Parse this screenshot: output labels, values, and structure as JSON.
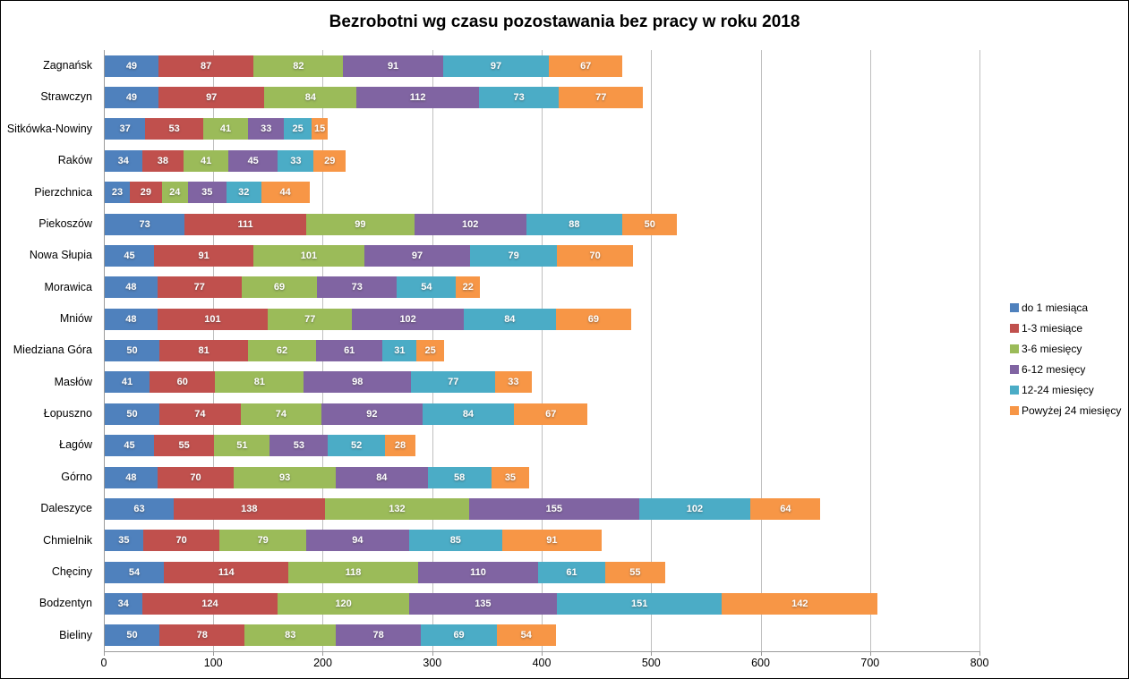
{
  "title": "Bezrobotni wg czasu pozostawania bez pracy w roku 2018",
  "chart_data": {
    "type": "bar",
    "orientation": "horizontal",
    "stacked": true,
    "title": "Bezrobotni wg czasu pozostawania bez pracy w roku 2018",
    "xlabel": "",
    "ylabel": "",
    "xlim": [
      0,
      800
    ],
    "xticks": [
      0,
      100,
      200,
      300,
      400,
      500,
      600,
      700,
      800
    ],
    "grid": true,
    "legend_position": "right",
    "value_labels": "inside-white-bold",
    "categories": [
      "Zagnańsk",
      "Strawczyn",
      "Sitkówka-Nowiny",
      "Raków",
      "Pierzchnica",
      "Piekoszów",
      "Nowa Słupia",
      "Morawica",
      "Mniów",
      "Miedziana Góra",
      "Masłów",
      "Łopuszno",
      "Łagów",
      "Górno",
      "Daleszyce",
      "Chmielnik",
      "Chęciny",
      "Bodzentyn",
      "Bieliny"
    ],
    "series": [
      {
        "name": "do 1 miesiąca",
        "color": "#4F81BD",
        "values": [
          49,
          49,
          37,
          34,
          23,
          73,
          45,
          48,
          48,
          50,
          41,
          50,
          45,
          48,
          63,
          35,
          54,
          34,
          50
        ]
      },
      {
        "name": "1-3 miesiące",
        "color": "#C0504D",
        "values": [
          87,
          97,
          53,
          38,
          29,
          111,
          91,
          77,
          101,
          81,
          60,
          74,
          55,
          70,
          138,
          70,
          114,
          124,
          78
        ]
      },
      {
        "name": "3-6 miesięcy",
        "color": "#9BBB59",
        "values": [
          82,
          84,
          41,
          41,
          24,
          99,
          101,
          69,
          77,
          62,
          81,
          74,
          51,
          93,
          132,
          79,
          118,
          120,
          83
        ]
      },
      {
        "name": "6-12 mesięcy",
        "color": "#8064A2",
        "values": [
          91,
          112,
          33,
          45,
          35,
          102,
          97,
          73,
          102,
          61,
          98,
          92,
          53,
          84,
          155,
          94,
          110,
          135,
          78
        ]
      },
      {
        "name": "12-24 miesięcy",
        "color": "#4BACC6",
        "values": [
          97,
          73,
          25,
          33,
          32,
          88,
          79,
          54,
          84,
          31,
          77,
          84,
          52,
          58,
          102,
          85,
          61,
          151,
          69
        ]
      },
      {
        "name": "Powyżej 24 miesięcy",
        "color": "#F79646",
        "values": [
          67,
          77,
          15,
          29,
          44,
          50,
          70,
          22,
          69,
          25,
          33,
          67,
          28,
          35,
          64,
          91,
          55,
          142,
          54
        ]
      }
    ],
    "colors": {
      "gridline": "#BFBFBF",
      "axis": "#9B9B9B",
      "label_text": "#FFFFFF"
    }
  }
}
